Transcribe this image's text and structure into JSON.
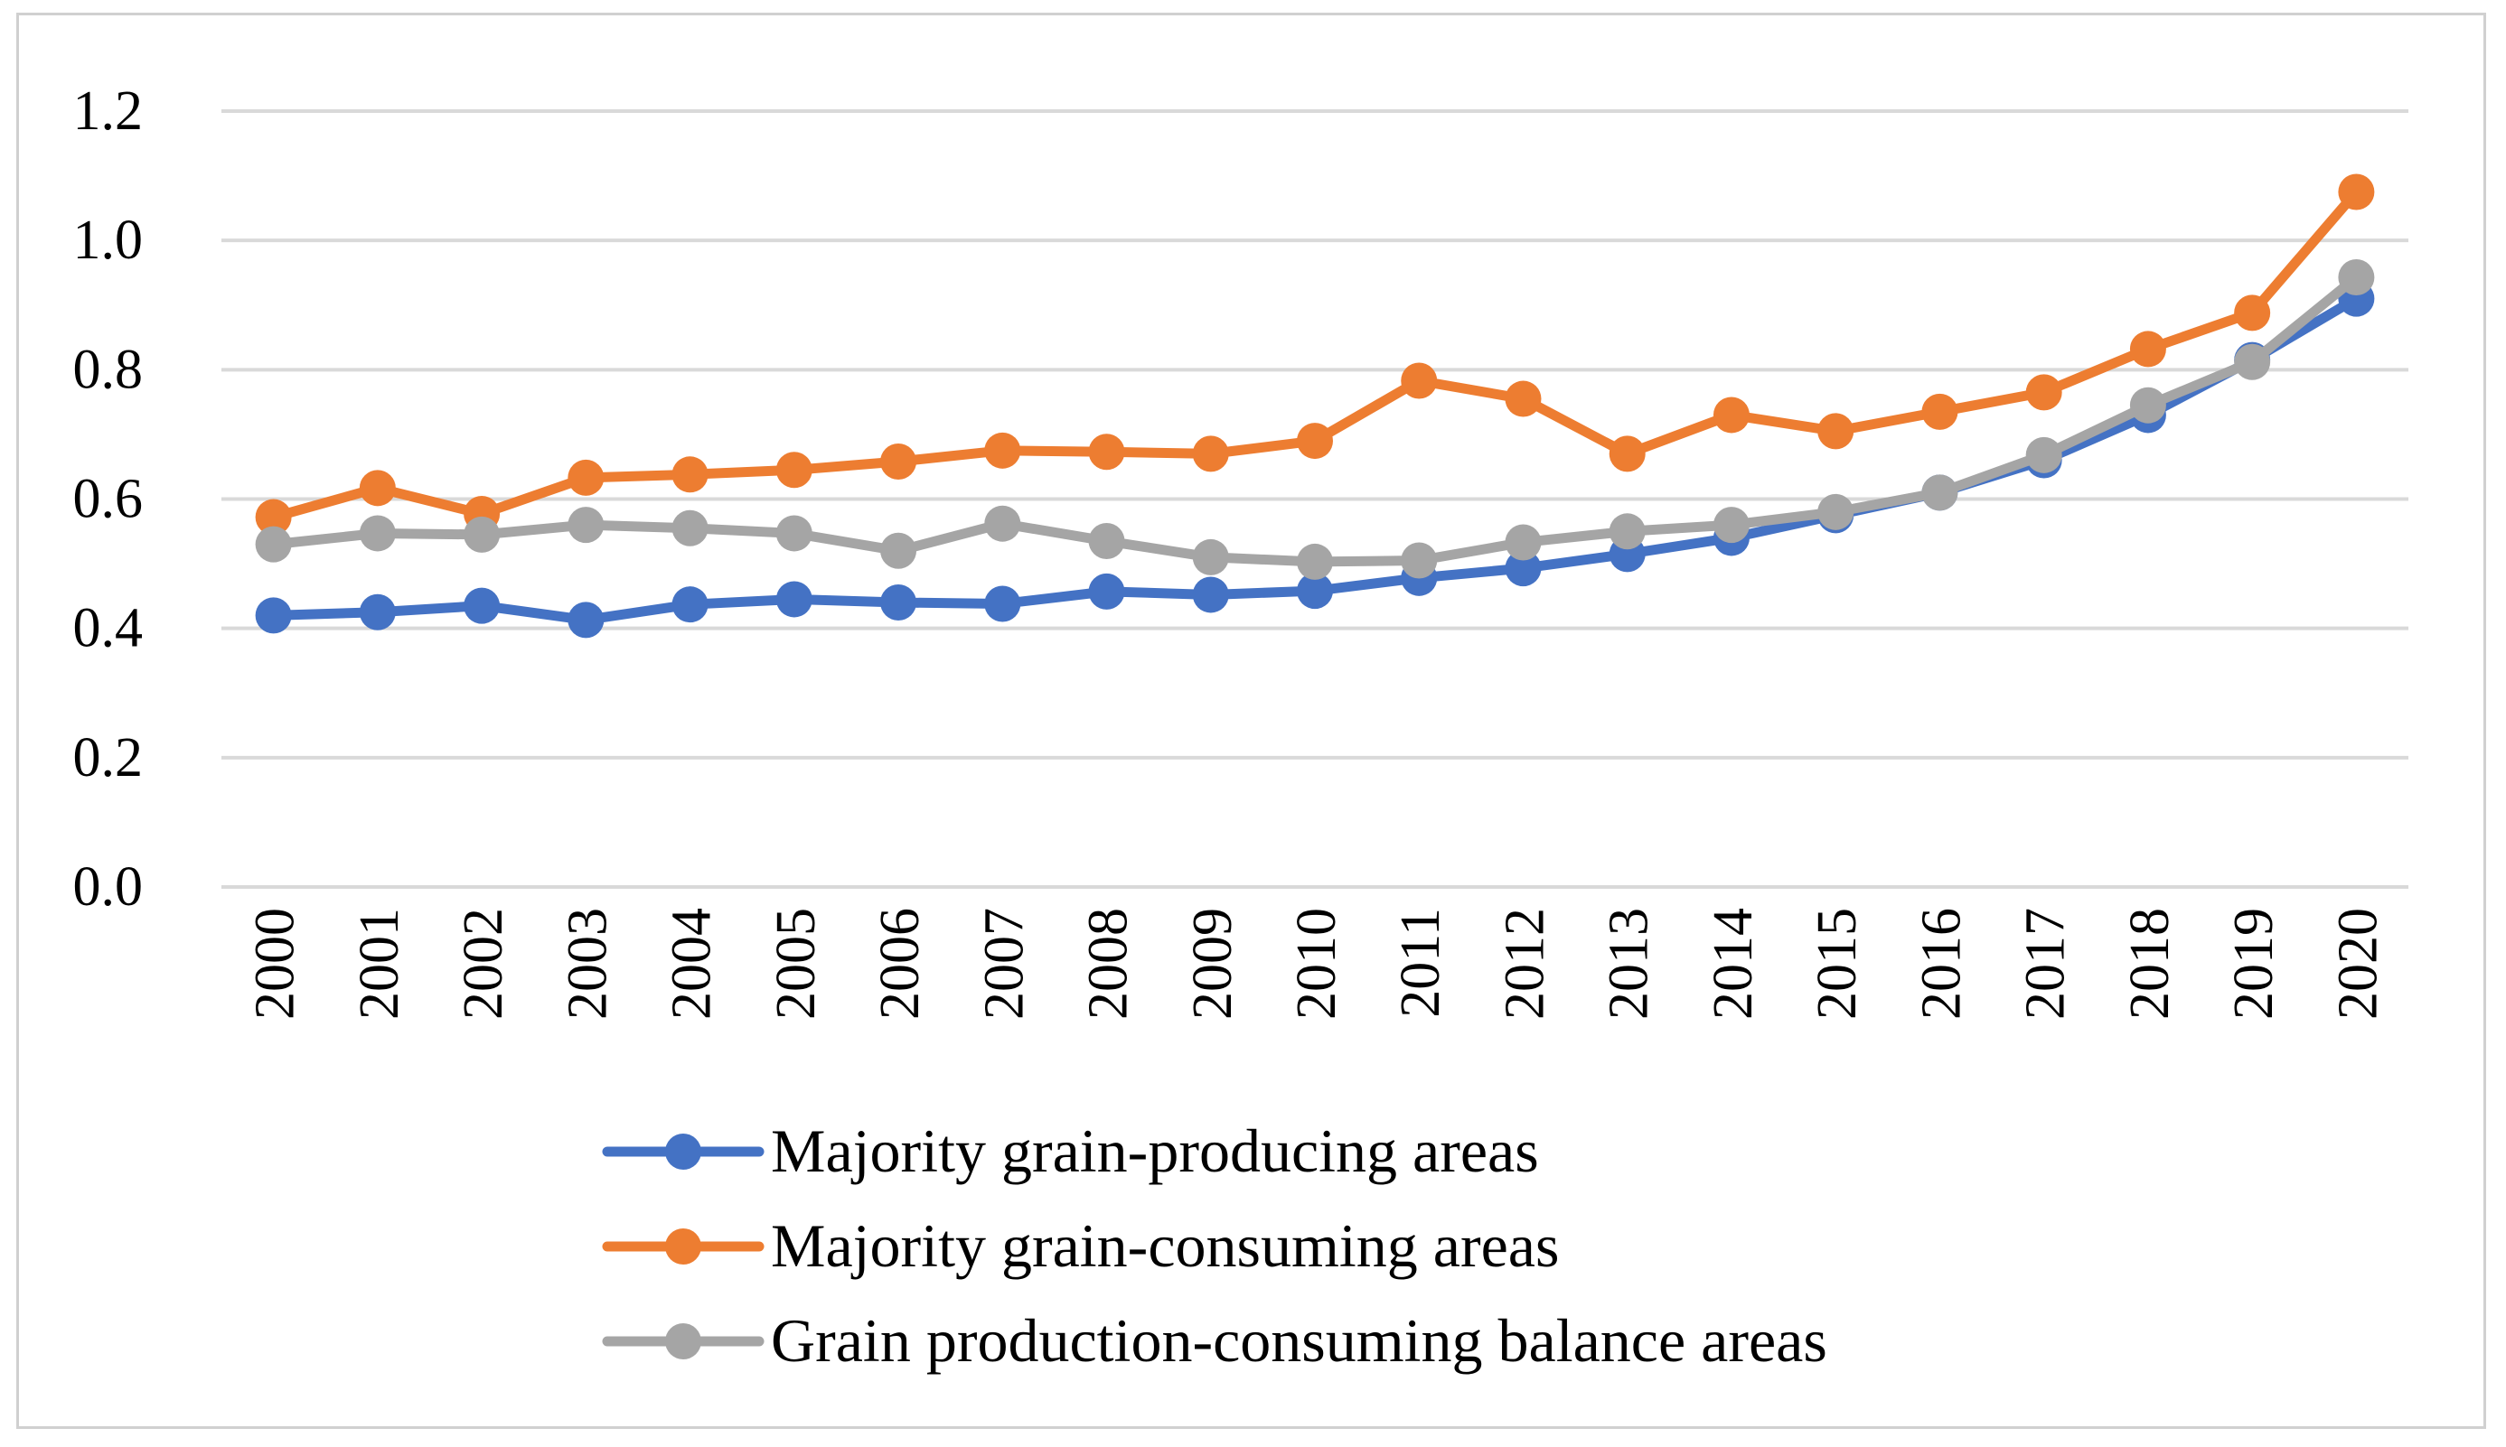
{
  "chart_data": {
    "type": "line",
    "title": "",
    "xlabel": "",
    "ylabel": "",
    "ylim": [
      0,
      1.2
    ],
    "yticks": [
      "0.0",
      "0.2",
      "0.4",
      "0.6",
      "0.8",
      "1.0",
      "1.2"
    ],
    "ytick_values": [
      0,
      0.2,
      0.4,
      0.6,
      0.8,
      1.0,
      1.2
    ],
    "categories": [
      "2000",
      "2001",
      "2002",
      "2003",
      "2004",
      "2005",
      "2006",
      "2007",
      "2008",
      "2009",
      "2010",
      "2011",
      "2012",
      "2013",
      "2014",
      "2015",
      "2016",
      "2017",
      "2018",
      "2019",
      "2020"
    ],
    "grid": true,
    "legend_position": "bottom",
    "series": [
      {
        "name": "Majority grain-producing areas",
        "color": "#4472c4",
        "values": [
          0.42,
          0.425,
          0.435,
          0.413,
          0.437,
          0.445,
          0.44,
          0.438,
          0.457,
          0.452,
          0.458,
          0.478,
          0.493,
          0.515,
          0.54,
          0.575,
          0.61,
          0.66,
          0.73,
          0.815,
          0.91
        ]
      },
      {
        "name": "Majority grain-consuming areas",
        "color": "#ed7d31",
        "values": [
          0.572,
          0.617,
          0.577,
          0.633,
          0.638,
          0.645,
          0.658,
          0.675,
          0.673,
          0.67,
          0.69,
          0.783,
          0.755,
          0.67,
          0.73,
          0.705,
          0.735,
          0.765,
          0.832,
          0.888,
          1.075
        ]
      },
      {
        "name": "Grain production-consuming balance areas",
        "color": "#a5a5a5",
        "values": [
          0.53,
          0.547,
          0.545,
          0.56,
          0.555,
          0.547,
          0.52,
          0.562,
          0.535,
          0.51,
          0.503,
          0.505,
          0.533,
          0.55,
          0.56,
          0.58,
          0.61,
          0.668,
          0.745,
          0.812,
          0.943
        ]
      }
    ]
  }
}
